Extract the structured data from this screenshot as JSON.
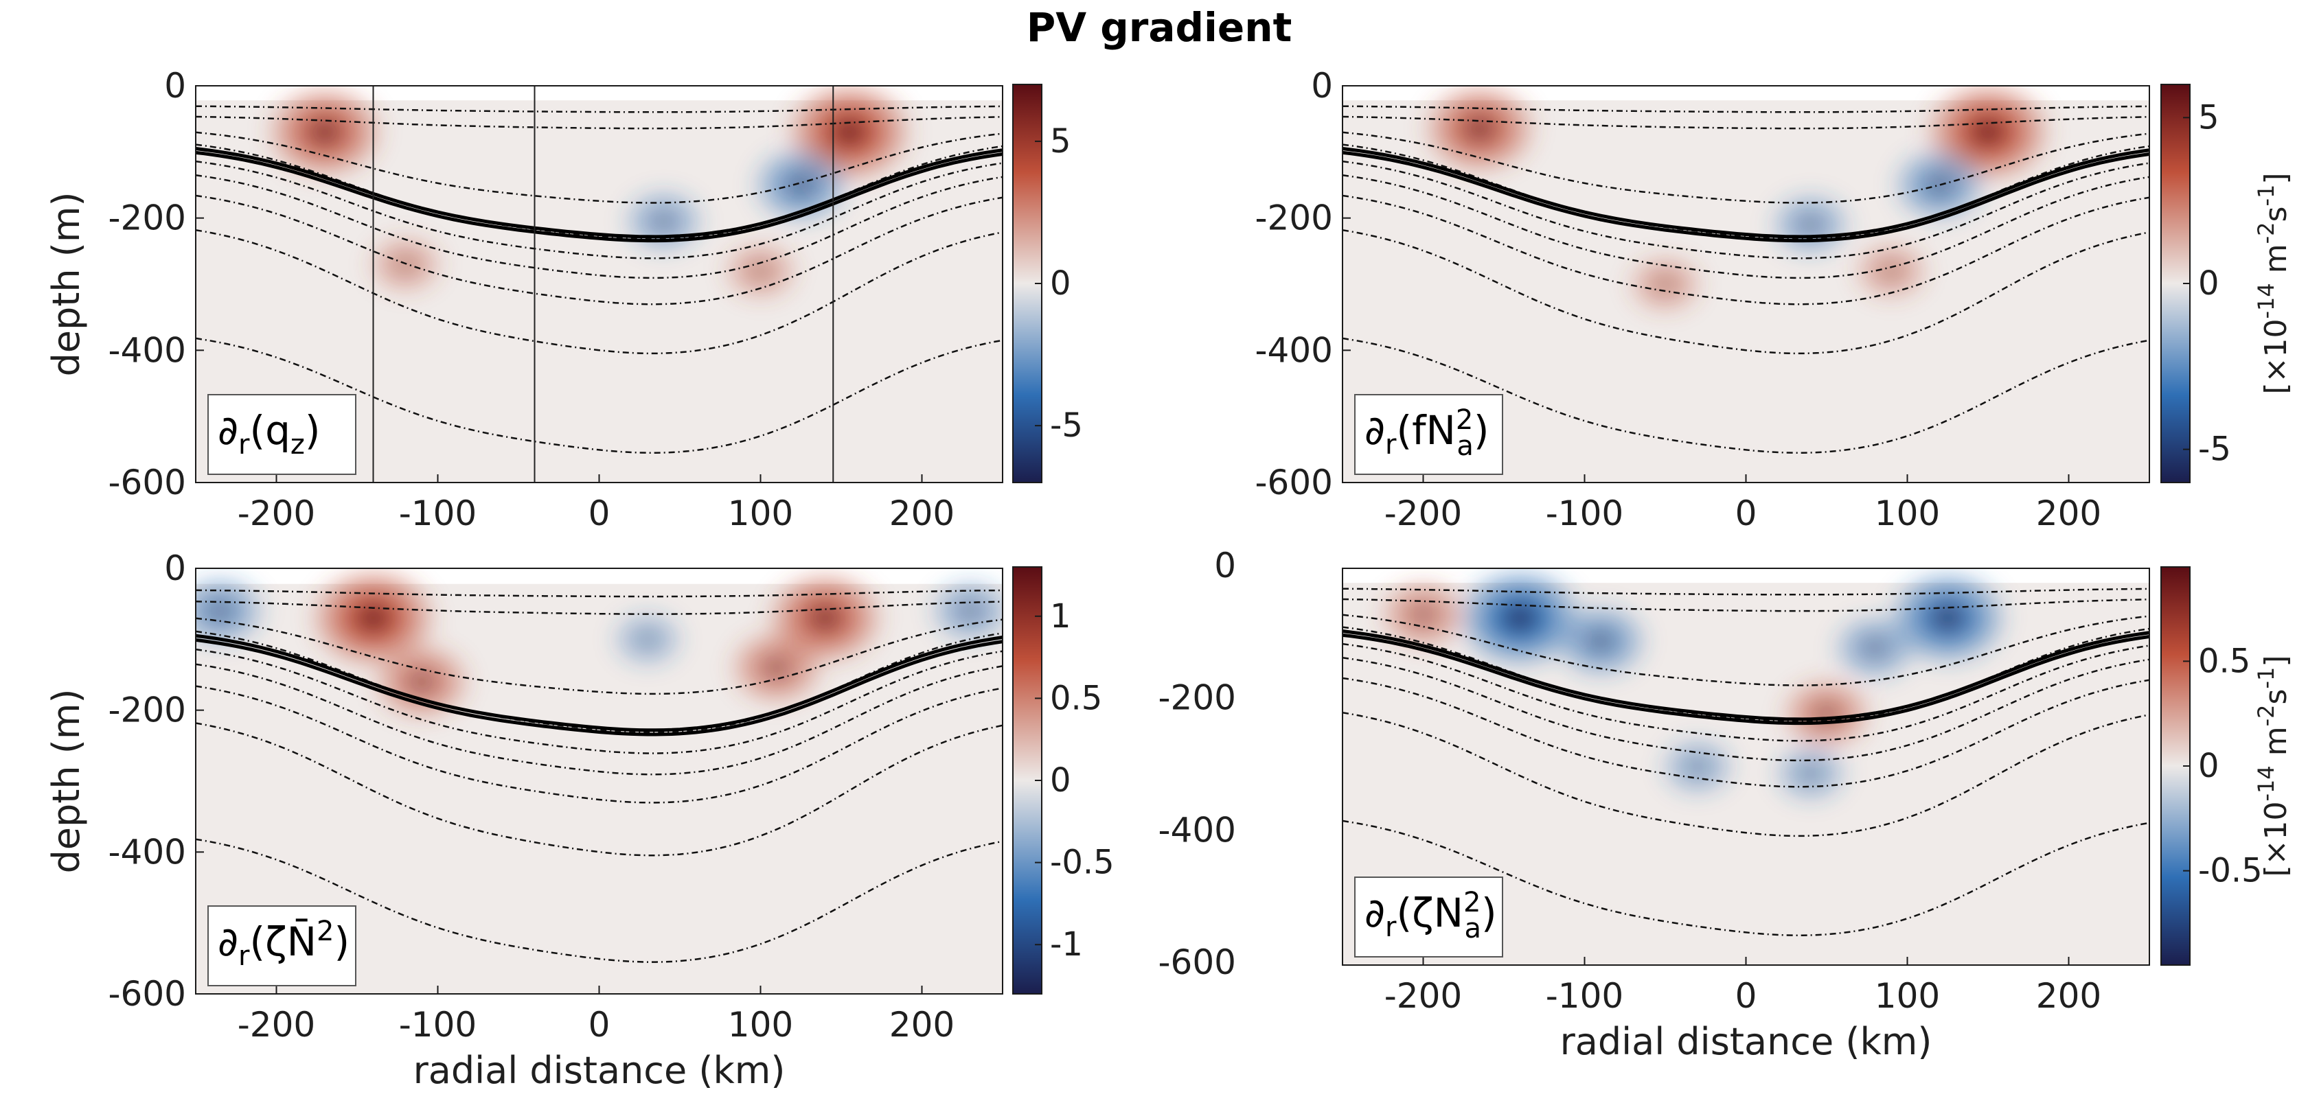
{
  "figure_title": "PV gradient",
  "colors": {
    "background": "#ffffff",
    "field_base": "#f0ebe9",
    "cmap_neg_end": "#1b1e4d",
    "cmap_neg_mid": "#2f6fb5",
    "cmap_neutral": "#ede9e7",
    "cmap_pos_mid": "#c0513a",
    "cmap_pos_end": "#5a0d14"
  },
  "chart_data": [
    {
      "type": "heatmap",
      "panel": "top-left",
      "label_main": "∂",
      "label_sub1": "r",
      "label_body": "(q",
      "label_sub2": "z",
      "label_close": ")",
      "xlabel": "",
      "ylabel": "depth (m)",
      "xlim": [
        -250,
        250
      ],
      "ylim": [
        -600,
        0
      ],
      "x_ticks": [
        "-200",
        "-100",
        "0",
        "100",
        "200"
      ],
      "y_ticks": [
        "0",
        "-200",
        "-400",
        "-600"
      ],
      "colorbar": {
        "range": [
          -7,
          7
        ],
        "ticks": [
          "5",
          "0",
          "-5"
        ],
        "tick_values": [
          5,
          0,
          -5
        ]
      },
      "vertical_lines_km": [
        -140,
        -40,
        145
      ],
      "features": [
        {
          "kind": "pos",
          "x": -170,
          "z": -70,
          "strength": 0.85
        },
        {
          "kind": "pos",
          "x": 155,
          "z": -70,
          "strength": 1.0
        },
        {
          "kind": "neg",
          "x": 125,
          "z": -150,
          "strength": 0.55
        },
        {
          "kind": "neg",
          "x": 40,
          "z": -205,
          "strength": 0.3
        },
        {
          "kind": "pos",
          "x": -120,
          "z": -270,
          "strength": 0.2
        },
        {
          "kind": "pos",
          "x": 100,
          "z": -280,
          "strength": 0.2
        }
      ]
    },
    {
      "type": "heatmap",
      "panel": "top-right",
      "label_main": "∂",
      "label_sub1": "r",
      "label_body": "(fN",
      "label_sup": "2",
      "label_sub2": "a",
      "label_close": ")",
      "xlabel": "",
      "ylabel": "",
      "xlim": [
        -250,
        250
      ],
      "ylim": [
        -600,
        0
      ],
      "x_ticks": [
        "-200",
        "-100",
        "0",
        "100",
        "200"
      ],
      "y_ticks": [
        "0",
        "-200",
        "-400",
        "-600"
      ],
      "colorbar": {
        "range": [
          -6,
          6
        ],
        "ticks": [
          "5",
          "0",
          "-5"
        ],
        "tick_values": [
          5,
          0,
          -5
        ],
        "unit": "[×10",
        "unit_exp": "-14",
        "unit_rest": " m",
        "unit_exp2": "-2",
        "unit_s": "s",
        "unit_exp3": "-1",
        "unit_close": "]"
      },
      "features": [
        {
          "kind": "pos",
          "x": -165,
          "z": -65,
          "strength": 0.8
        },
        {
          "kind": "pos",
          "x": 150,
          "z": -70,
          "strength": 1.0
        },
        {
          "kind": "neg",
          "x": 120,
          "z": -150,
          "strength": 0.5
        },
        {
          "kind": "neg",
          "x": 40,
          "z": -210,
          "strength": 0.3
        },
        {
          "kind": "pos",
          "x": -50,
          "z": -300,
          "strength": 0.2
        },
        {
          "kind": "pos",
          "x": 90,
          "z": -280,
          "strength": 0.2
        }
      ]
    },
    {
      "type": "heatmap",
      "panel": "bottom-left",
      "label_main": "∂",
      "label_sub1": "r",
      "label_body": "(ζN̄",
      "label_sup": "2",
      "label_close": ")",
      "xlabel": "radial distance (km)",
      "ylabel": "depth (m)",
      "xlim": [
        -250,
        250
      ],
      "ylim": [
        -600,
        0
      ],
      "x_ticks": [
        "-200",
        "-100",
        "0",
        "100",
        "200"
      ],
      "y_ticks": [
        "0",
        "-200",
        "-400",
        "-600"
      ],
      "extra_y_ticks": [
        "0",
        "-200",
        "-400",
        "-600"
      ],
      "colorbar": {
        "range": [
          -1.3,
          1.3
        ],
        "ticks": [
          "1",
          "0.5",
          "0",
          "-0.5",
          "-1"
        ],
        "tick_values": [
          1,
          0.5,
          0,
          -0.5,
          -1
        ]
      },
      "features": [
        {
          "kind": "pos",
          "x": -140,
          "z": -70,
          "strength": 1.0
        },
        {
          "kind": "pos",
          "x": -110,
          "z": -160,
          "strength": 0.55
        },
        {
          "kind": "pos",
          "x": 140,
          "z": -70,
          "strength": 0.85
        },
        {
          "kind": "pos",
          "x": 110,
          "z": -140,
          "strength": 0.5
        },
        {
          "kind": "neg",
          "x": -235,
          "z": -60,
          "strength": 0.45
        },
        {
          "kind": "neg",
          "x": 230,
          "z": -60,
          "strength": 0.3
        },
        {
          "kind": "neg",
          "x": 30,
          "z": -100,
          "strength": 0.15
        }
      ]
    },
    {
      "type": "heatmap",
      "panel": "bottom-right",
      "label_main": "∂",
      "label_sub1": "r",
      "label_body": "(ζN",
      "label_sup": "2",
      "label_sub2": "a",
      "label_close": ")",
      "xlabel": "radial distance (km)",
      "ylabel": "",
      "xlim": [
        -250,
        250
      ],
      "ylim": [
        -600,
        0
      ],
      "x_ticks": [
        "-200",
        "-100",
        "0",
        "100",
        "200"
      ],
      "y_ticks": [],
      "colorbar": {
        "range": [
          -0.95,
          0.95
        ],
        "ticks": [
          "0.5",
          "0",
          "-0.5"
        ],
        "tick_values": [
          0.5,
          0,
          -0.5
        ],
        "unit": "[×10",
        "unit_exp": "-14",
        "unit_rest": " m",
        "unit_exp2": "-2",
        "unit_s": "s",
        "unit_exp3": "-1",
        "unit_close": "]"
      },
      "features": [
        {
          "kind": "neg",
          "x": -140,
          "z": -75,
          "strength": 1.0
        },
        {
          "kind": "neg",
          "x": -90,
          "z": -110,
          "strength": 0.5
        },
        {
          "kind": "neg",
          "x": 125,
          "z": -75,
          "strength": 0.9
        },
        {
          "kind": "neg",
          "x": 80,
          "z": -120,
          "strength": 0.35
        },
        {
          "kind": "pos",
          "x": -200,
          "z": -70,
          "strength": 0.4
        },
        {
          "kind": "pos",
          "x": 50,
          "z": -220,
          "strength": 0.45
        },
        {
          "kind": "neg",
          "x": -30,
          "z": -300,
          "strength": 0.2
        },
        {
          "kind": "neg",
          "x": 40,
          "z": -310,
          "strength": 0.2
        }
      ]
    }
  ],
  "isopycnals": [
    {
      "surface": -30,
      "bowl": 10,
      "bold": false
    },
    {
      "surface": -45,
      "bowl": 20,
      "bold": false
    },
    {
      "surface": -60,
      "bowl": 120,
      "bold": false
    },
    {
      "surface": -75,
      "bowl": 160,
      "bold": false
    },
    {
      "surface": -82,
      "bowl": 150,
      "bold": true
    },
    {
      "surface": -88,
      "bowl": 150,
      "bold": true
    },
    {
      "surface": -100,
      "bowl": 165,
      "bold": false
    },
    {
      "surface": -120,
      "bowl": 175,
      "bold": false
    },
    {
      "surface": -150,
      "bowl": 185,
      "bold": false
    },
    {
      "surface": -200,
      "bowl": 210,
      "bold": false
    },
    {
      "surface": -365,
      "bowl": 195,
      "bold": false
    }
  ]
}
